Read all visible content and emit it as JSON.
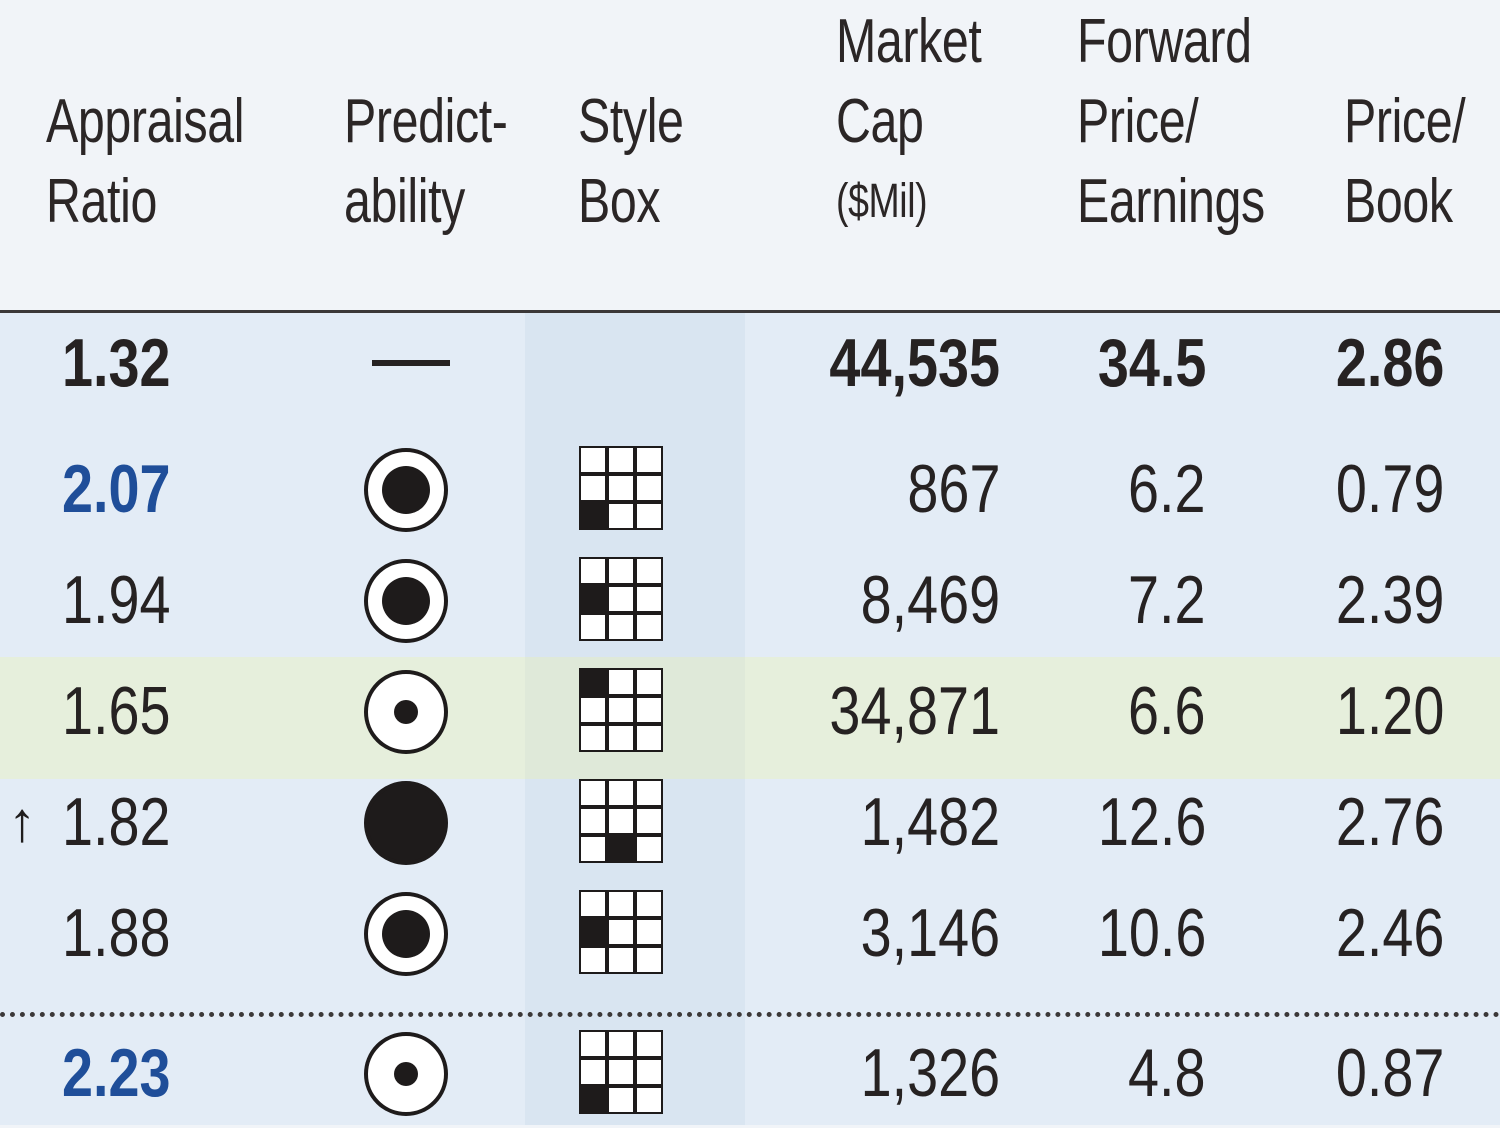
{
  "headers": {
    "appraisal": [
      "Appraisal",
      "Ratio"
    ],
    "predictability": [
      "Predict-",
      "ability"
    ],
    "style_box": [
      "Style",
      "Box"
    ],
    "market_cap": [
      "Market",
      "Cap",
      "($Mil)"
    ],
    "forward_pe": [
      "Forward",
      "Price/",
      "Earnings"
    ],
    "price_book": [
      "Price/",
      "Book"
    ]
  },
  "rows": [
    {
      "ratio": "1.32",
      "arrow": "",
      "predictability": "—",
      "style": null,
      "market_cap": "44,535",
      "forward_pe": "34.5",
      "price_book": "2.86",
      "bold": true,
      "ratio_color": "#262222"
    },
    {
      "ratio": "2.07",
      "arrow": "",
      "predictability": "medium-ring",
      "style": [
        2,
        0
      ],
      "market_cap": "867",
      "forward_pe": "6.2",
      "price_book": "0.79",
      "bold": false,
      "ratio_color": "#1f4e99",
      "ratio_bold": true
    },
    {
      "ratio": "1.94",
      "arrow": "",
      "predictability": "medium-ring",
      "style": [
        1,
        0
      ],
      "market_cap": "8,469",
      "forward_pe": "7.2",
      "price_book": "2.39",
      "bold": false,
      "ratio_color": "#262222"
    },
    {
      "ratio": "1.65",
      "arrow": "",
      "predictability": "small-ring",
      "style": [
        0,
        0
      ],
      "market_cap": "34,871",
      "forward_pe": "6.6",
      "price_book": "1.20",
      "bold": false,
      "ratio_color": "#262222"
    },
    {
      "ratio": "1.82",
      "arrow": "↑",
      "predictability": "full",
      "style": [
        2,
        1
      ],
      "market_cap": "1,482",
      "forward_pe": "12.6",
      "price_book": "2.76",
      "bold": false,
      "ratio_color": "#262222"
    },
    {
      "ratio": "1.88",
      "arrow": "",
      "predictability": "medium-ring",
      "style": [
        1,
        0
      ],
      "market_cap": "3,146",
      "forward_pe": "10.6",
      "price_book": "2.46",
      "bold": false,
      "ratio_color": "#262222"
    },
    {
      "ratio": "2.23",
      "arrow": "",
      "predictability": "small-ring",
      "style": [
        2,
        0
      ],
      "market_cap": "1,326",
      "forward_pe": "4.8",
      "price_book": "0.87",
      "bold": false,
      "ratio_color": "#1f4e99",
      "ratio_bold": true
    }
  ]
}
